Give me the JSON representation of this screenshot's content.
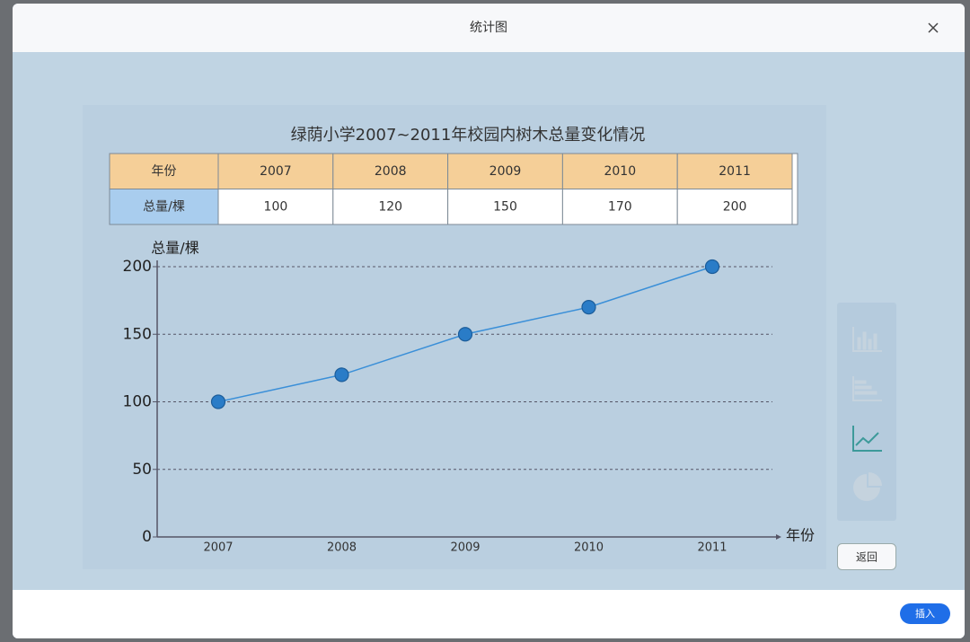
{
  "dialog": {
    "title": "统计图",
    "back_button": "返回",
    "insert_button": "插入"
  },
  "chart_data": {
    "type": "line",
    "title": "绿荫小学2007~2011年校园内树木总量变化情况",
    "x_label": "年份",
    "y_label": "总量/棵",
    "categories": [
      "2007",
      "2008",
      "2009",
      "2010",
      "2011"
    ],
    "values": [
      100,
      120,
      150,
      170,
      200
    ],
    "color": "#3a8fd8",
    "marker_color": "#2a7cc7",
    "ylim": [
      0,
      200
    ],
    "yticks": [
      0,
      50,
      100,
      150,
      200
    ],
    "grid": true
  }
}
